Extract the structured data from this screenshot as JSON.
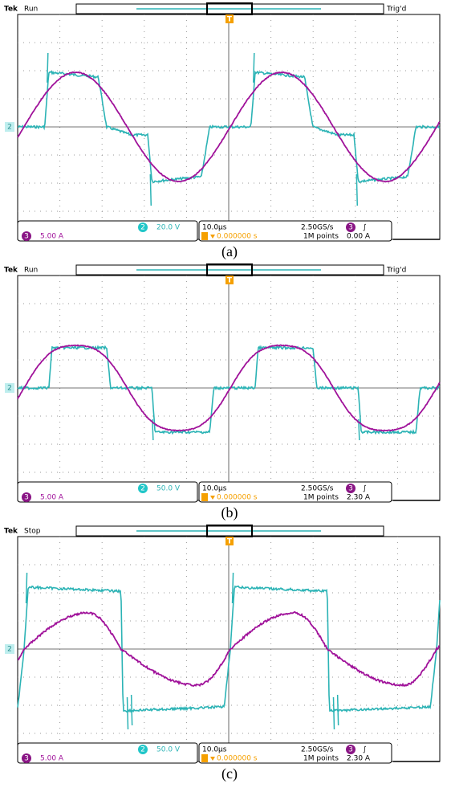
{
  "panels": [
    {
      "brand": "Tek",
      "state": "Run",
      "trigger_status": "Trig'd",
      "trigger_marker": "T",
      "ch2_level_marker": "2",
      "ch2_label": "2",
      "ch2_scale": "20.0 V",
      "ch3_label": "3",
      "ch3_scale": "5.00 A",
      "timebase": "10.0µs",
      "sample_rate": "2.50GS/s",
      "trigger_source": "3",
      "trigger_slope": "∫",
      "trigger_position": "0.000000 s",
      "record_length": "1M points",
      "trigger_level": "0.00 A",
      "caption": "(a)"
    },
    {
      "brand": "Tek",
      "state": "Run",
      "trigger_status": "Trig'd",
      "trigger_marker": "T",
      "ch2_level_marker": "2",
      "ch2_label": "2",
      "ch2_scale": "50.0 V",
      "ch3_label": "3",
      "ch3_scale": "5.00 A",
      "timebase": "10.0µs",
      "sample_rate": "2.50GS/s",
      "trigger_source": "3",
      "trigger_slope": "∫",
      "trigger_position": "0.000000 s",
      "record_length": "1M points",
      "trigger_level": "2.30 A",
      "caption": "(b)"
    },
    {
      "brand": "Tek",
      "state": "Stop",
      "trigger_marker": "T",
      "ch2_level_marker": "2",
      "ch2_label": "2",
      "ch2_scale": "50.0 V",
      "ch3_label": "3",
      "ch3_scale": "5.00 A",
      "timebase": "10.0µs",
      "sample_rate": "2.50GS/s",
      "trigger_source": "3",
      "trigger_slope": "∫",
      "trigger_position": "0.000000 s",
      "record_length": "1M points",
      "trigger_level": "2.30 A",
      "caption": "(c)"
    }
  ]
}
